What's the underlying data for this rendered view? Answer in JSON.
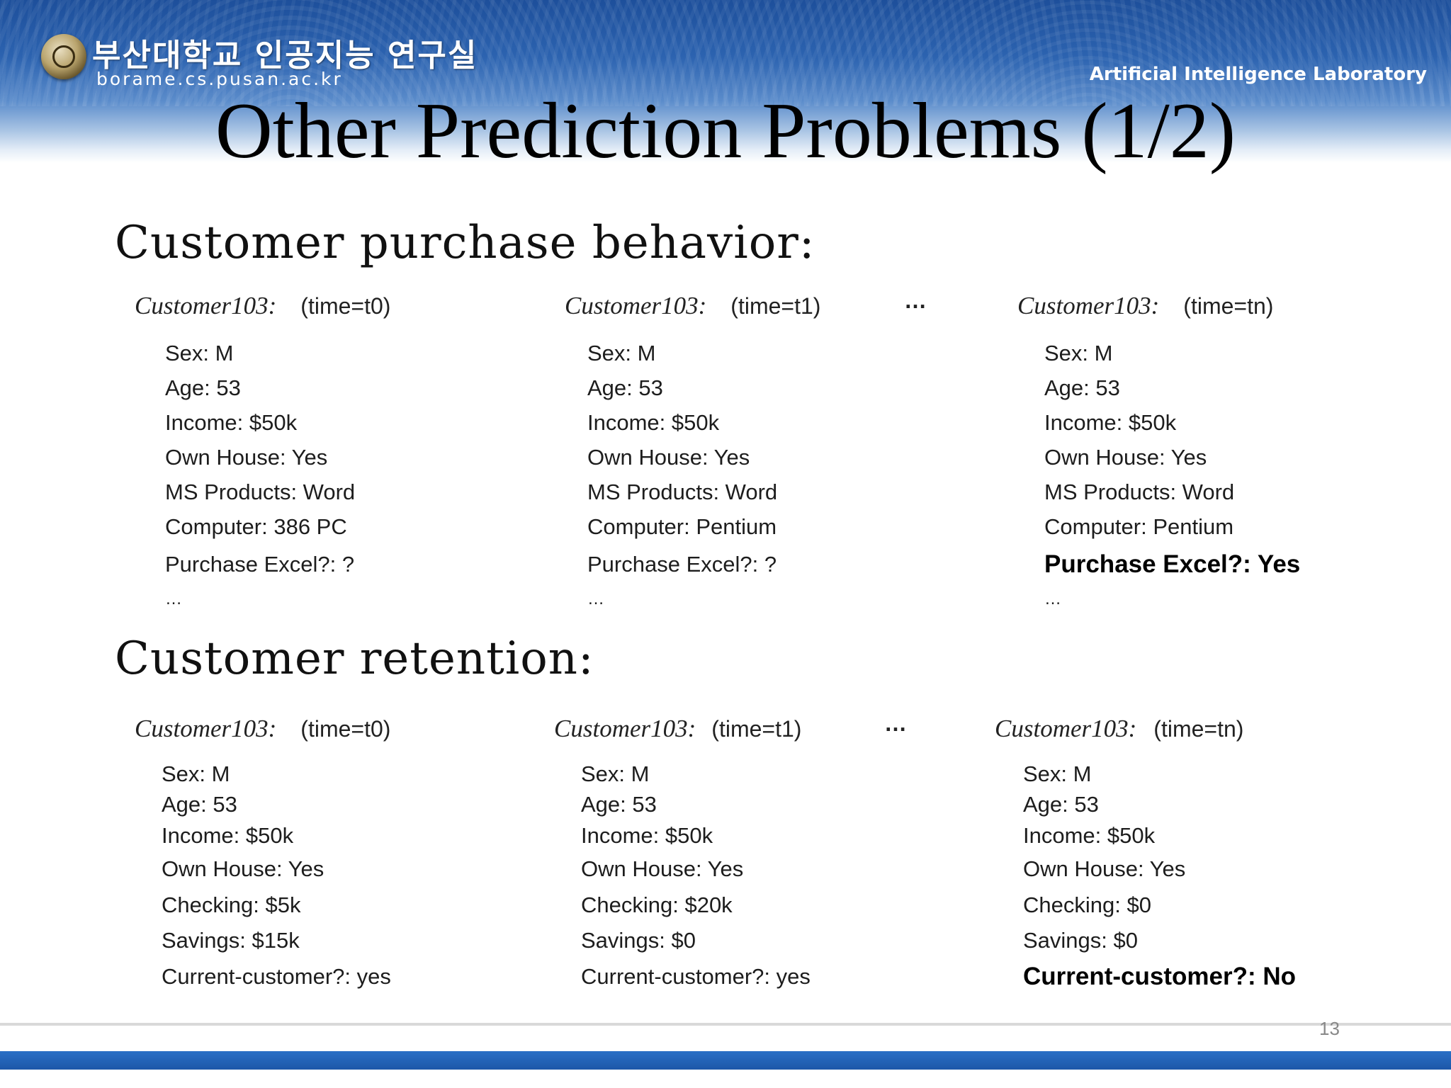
{
  "header": {
    "lab_name_ko": "부산대학교 인공지능 연구실",
    "lab_url": "borame.cs.pusan.ac.kr",
    "lab_name_en": "Artificial Intelligence Laboratory",
    "seal_icon": "university-seal-icon"
  },
  "slide": {
    "title": "Other Prediction Problems (1/2)",
    "page_number": "13"
  },
  "purchase_behavior": {
    "heading": "Customer purchase behavior:",
    "ellipsis": "…",
    "customers": [
      {
        "id": "Customer103:",
        "time": "(time=t0)",
        "attributes": [
          "Sex: M",
          "Age: 53",
          "Income: $50k",
          "Own House: Yes",
          "MS Products: Word",
          "Computer: 386 PC",
          "Purchase Excel?: ?"
        ],
        "more": "…"
      },
      {
        "id": "Customer103:",
        "time": "(time=t1)",
        "attributes": [
          "Sex: M",
          "Age: 53",
          "Income: $50k",
          "Own House: Yes",
          "MS Products: Word",
          "Computer: Pentium",
          "Purchase Excel?: ?"
        ],
        "more": "…"
      },
      {
        "id": "Customer103:",
        "time": "(time=tn)",
        "attributes": [
          "Sex: M",
          "Age: 53",
          "Income: $50k",
          "Own House: Yes",
          "MS Products: Word",
          "Computer: Pentium",
          "Purchase Excel?: Yes"
        ],
        "more": "…"
      }
    ]
  },
  "retention": {
    "heading": "Customer retention:",
    "ellipsis": "…",
    "customers": [
      {
        "id": "Customer103:",
        "time": "(time=t0)",
        "attributes": [
          "Sex: M",
          "Age: 53",
          "Income: $50k",
          "Own House: Yes",
          "Checking: $5k",
          "Savings: $15k",
          "Current-customer?: yes"
        ]
      },
      {
        "id": "Customer103:",
        "time": "(time=t1)",
        "attributes": [
          "Sex: M",
          "Age: 53",
          "Income: $50k",
          "Own House: Yes",
          "Checking: $20k",
          "Savings: $0",
          "Current-customer?: yes"
        ]
      },
      {
        "id": "Customer103:",
        "time": "(time=tn)",
        "attributes": [
          "Sex: M",
          "Age: 53",
          "Income: $50k",
          "Own House: Yes",
          "Checking: $0",
          "Savings: $0",
          "Current-customer?: No"
        ]
      }
    ]
  }
}
